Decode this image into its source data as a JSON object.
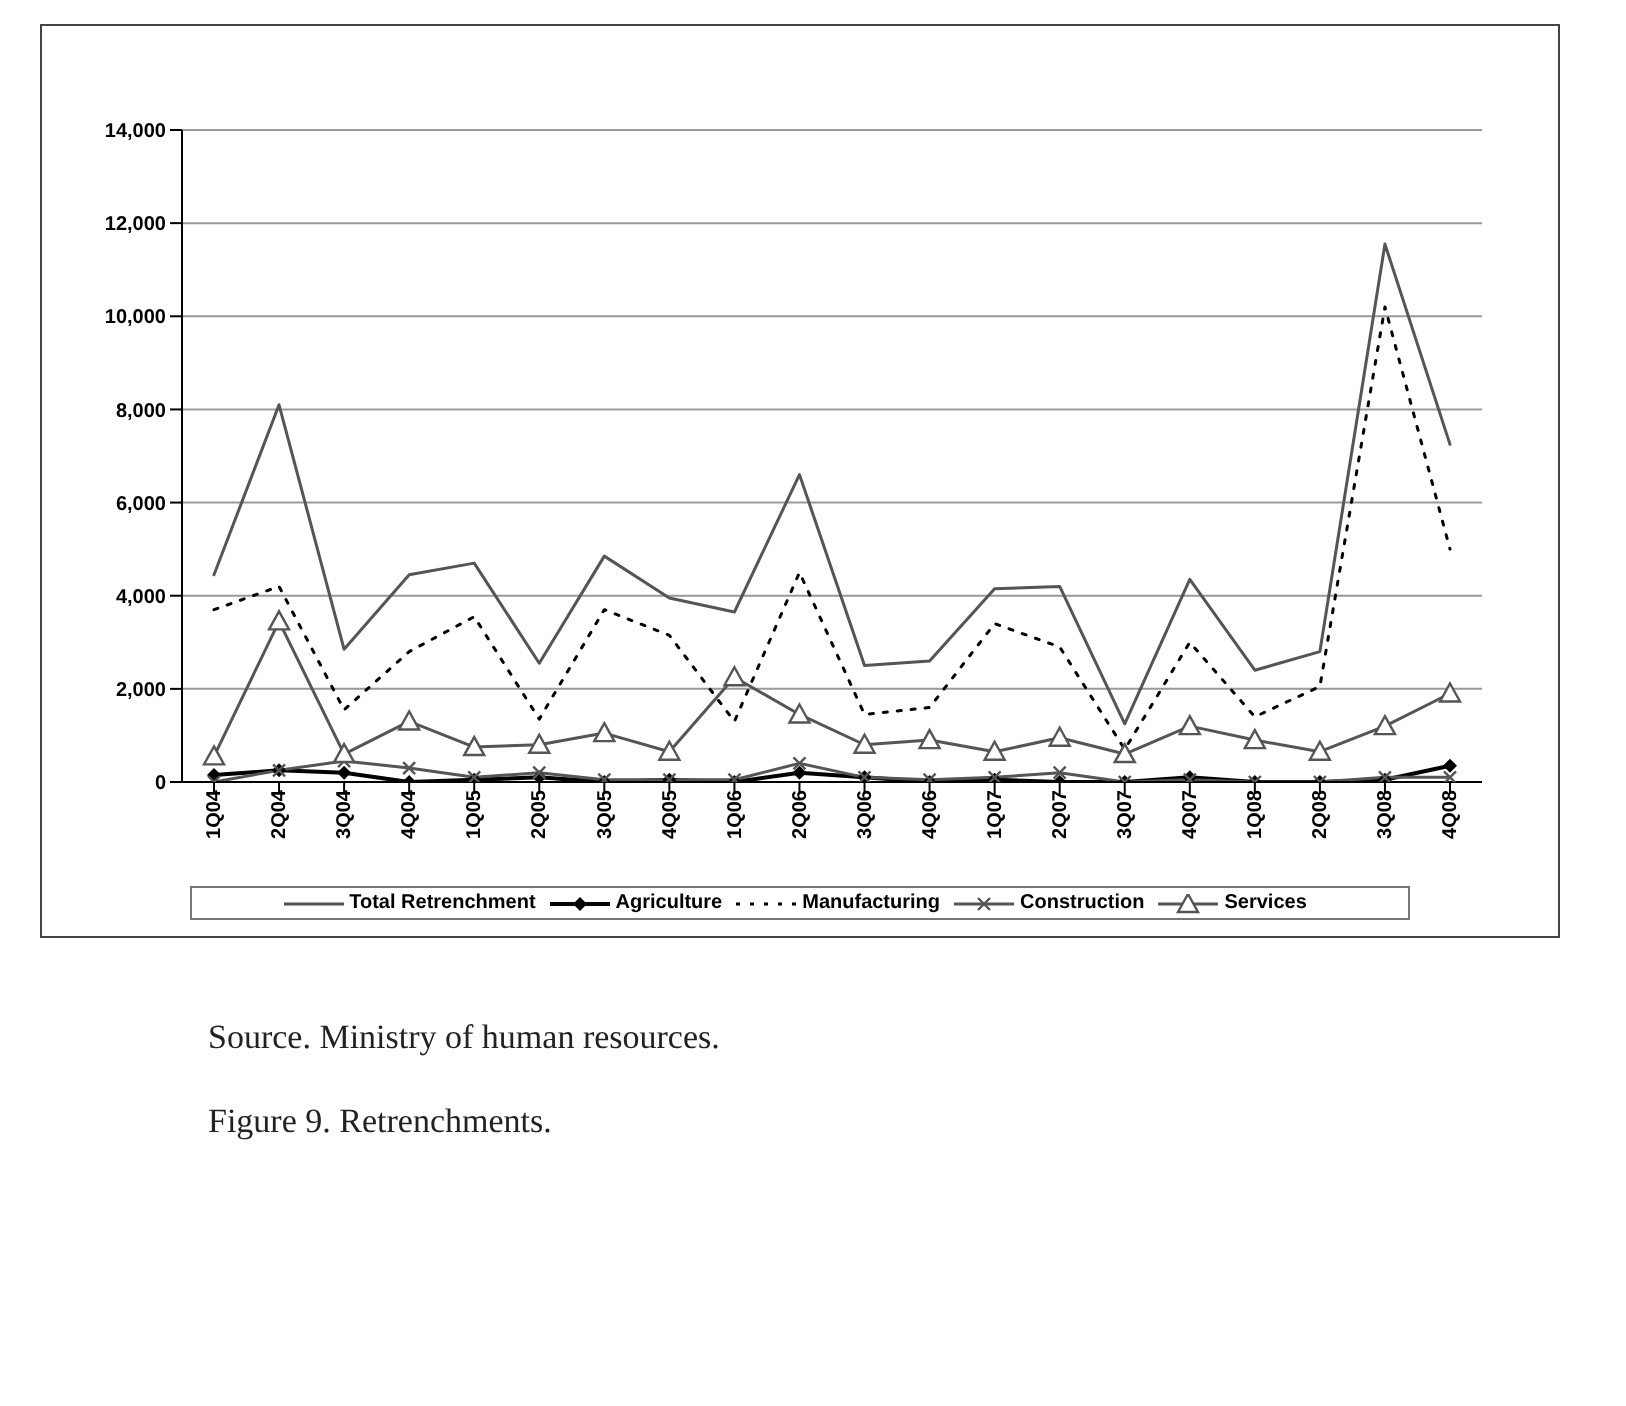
{
  "chart_data": {
    "type": "line",
    "categories": [
      "1Q04",
      "2Q04",
      "3Q04",
      "4Q04",
      "1Q05",
      "2Q05",
      "3Q05",
      "4Q05",
      "1Q06",
      "2Q06",
      "3Q06",
      "4Q06",
      "1Q07",
      "2Q07",
      "3Q07",
      "4Q07",
      "1Q08",
      "2Q08",
      "3Q08",
      "4Q08"
    ],
    "series": [
      {
        "name": "Total Retrenchment",
        "color": "#555555",
        "marker": "none",
        "line_style": "solid",
        "values": [
          4450,
          8100,
          2850,
          4450,
          4700,
          2550,
          4850,
          3950,
          3650,
          6600,
          2500,
          2600,
          4150,
          4200,
          1250,
          4350,
          2400,
          2800,
          11550,
          7250
        ]
      },
      {
        "name": "Agriculture",
        "color": "#000000",
        "marker": "diamond",
        "line_style": "solid",
        "values": [
          150,
          250,
          200,
          0,
          50,
          100,
          0,
          50,
          0,
          200,
          100,
          0,
          50,
          0,
          0,
          100,
          0,
          0,
          50,
          350
        ]
      },
      {
        "name": "Manufacturing",
        "color": "#000000",
        "marker": "none",
        "line_style": "dotted",
        "values": [
          3700,
          4200,
          1550,
          2800,
          3550,
          1350,
          3700,
          3150,
          1300,
          4500,
          1450,
          1600,
          3400,
          2900,
          700,
          3000,
          1400,
          2050,
          10200,
          5000
        ]
      },
      {
        "name": "Construction",
        "color": "#555555",
        "marker": "cross",
        "line_style": "solid",
        "values": [
          0,
          250,
          450,
          300,
          100,
          200,
          50,
          50,
          50,
          400,
          100,
          50,
          100,
          200,
          0,
          50,
          0,
          0,
          100,
          100
        ]
      },
      {
        "name": "Services",
        "color": "#555555",
        "marker": "triangle",
        "line_style": "solid",
        "values": [
          550,
          3450,
          600,
          1300,
          750,
          800,
          1050,
          650,
          2250,
          1450,
          800,
          900,
          650,
          950,
          600,
          1200,
          900,
          650,
          1200,
          1900
        ]
      }
    ],
    "ylim": [
      0,
      14000
    ],
    "yticks": [
      {
        "value": 0,
        "label": "0"
      },
      {
        "value": 2000,
        "label": "2,000"
      },
      {
        "value": 4000,
        "label": "4,000"
      },
      {
        "value": 6000,
        "label": "6,000"
      },
      {
        "value": 8000,
        "label": "8,000"
      },
      {
        "value": 10000,
        "label": "10,000"
      },
      {
        "value": 12000,
        "label": "12,000"
      },
      {
        "value": 14000,
        "label": "14,000"
      }
    ],
    "grid": "y",
    "legend": "bottom",
    "annotations": [
      "Source. Ministry of human resources.",
      "Figure 9. Retrenchments."
    ]
  }
}
